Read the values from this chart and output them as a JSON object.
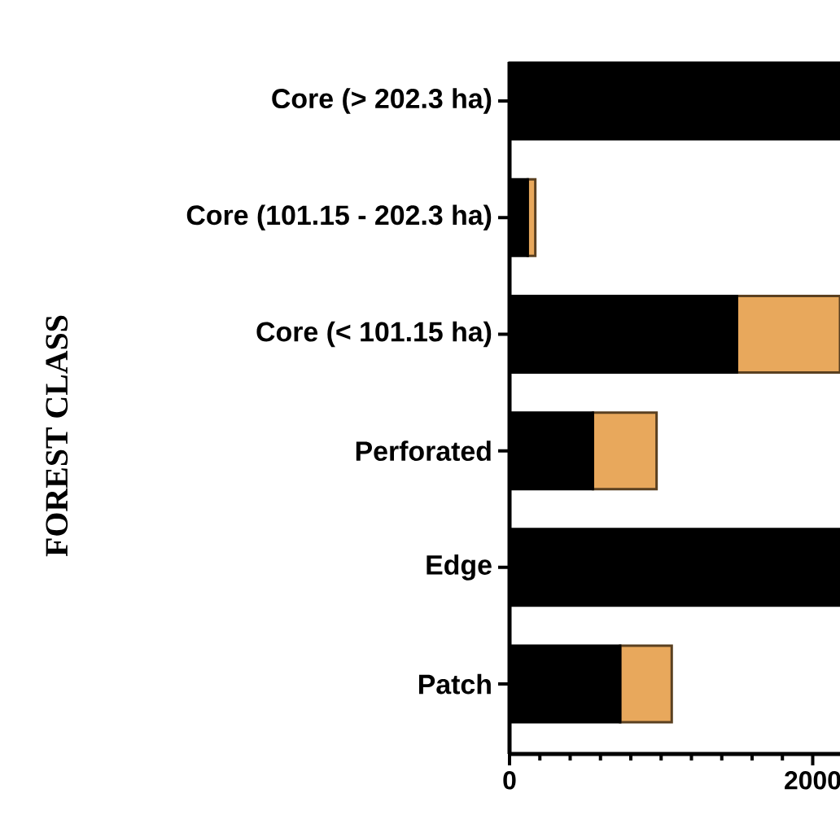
{
  "chart_data": {
    "type": "bar",
    "orientation": "horizontal",
    "stacked": true,
    "ylabel": "FOREST CLASS",
    "categories": [
      "Core (> 202.3 ha)",
      "Core (101.15 - 202.3 ha)",
      "Core (< 101.15 ha)",
      "Perforated",
      "Edge",
      "Patch"
    ],
    "series": [
      {
        "color": "#000000",
        "values": [
          2180,
          120,
          1500,
          550,
          2180,
          730
        ]
      },
      {
        "color": "#e8a85c",
        "values": [
          0,
          50,
          680,
          420,
          0,
          340
        ]
      }
    ],
    "xlim": [
      0,
      2180
    ],
    "xticks": [
      0,
      {
        "value": 200,
        "label": null
      },
      {
        "value": 400,
        "label": null
      },
      {
        "value": 600,
        "label": null
      },
      {
        "value": 800,
        "label": null
      },
      {
        "value": 1000,
        "label": null
      },
      {
        "value": 1200,
        "label": null
      },
      {
        "value": 1400,
        "label": null
      },
      {
        "value": 1600,
        "label": null
      },
      {
        "value": 1800,
        "label": null
      },
      2000
    ]
  }
}
